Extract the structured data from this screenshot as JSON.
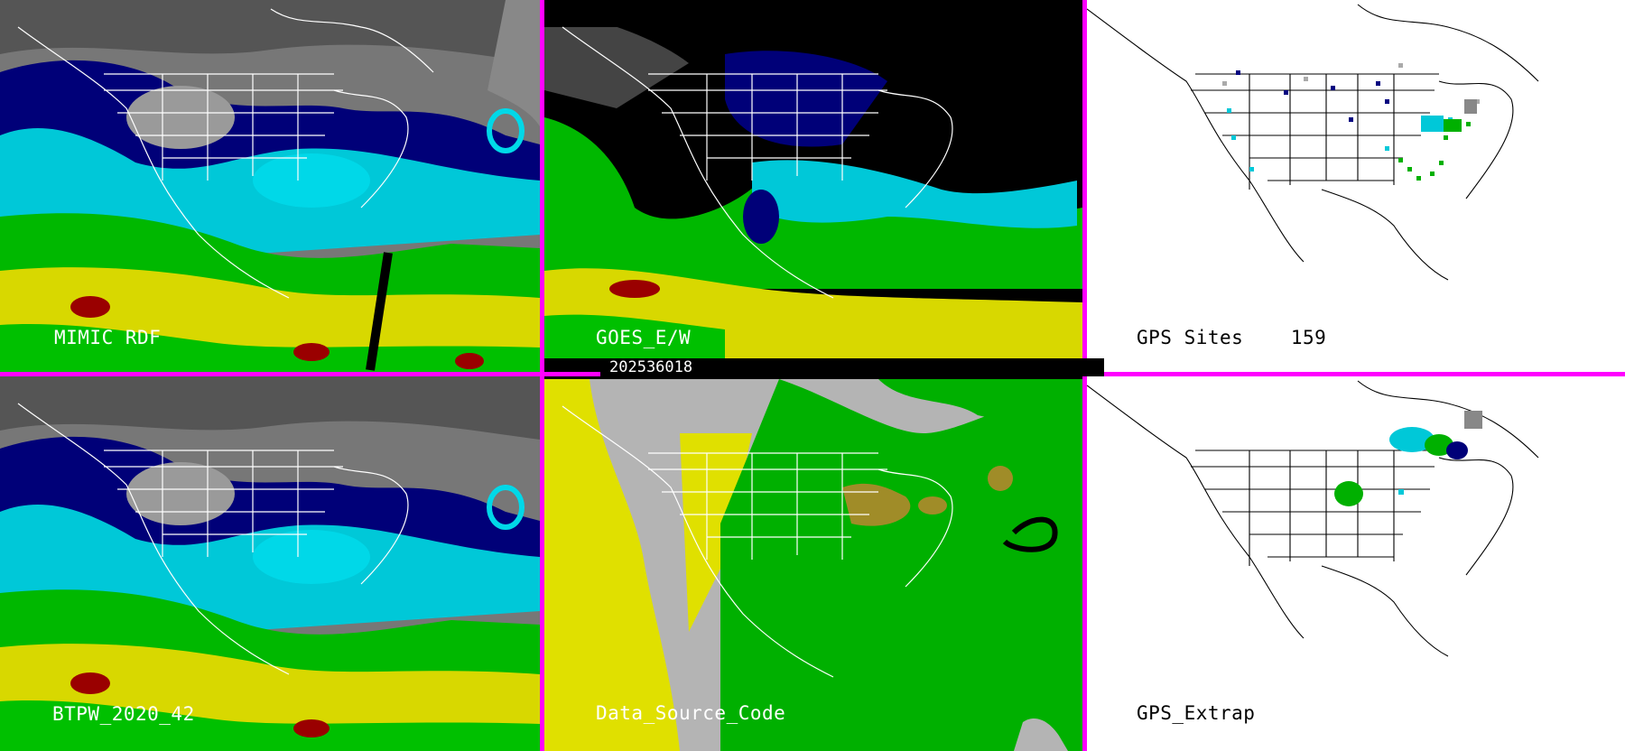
{
  "panels": [
    {
      "id": "mimic",
      "label": "MIMIC RDF",
      "label_color": "#ffffff",
      "style": "color"
    },
    {
      "id": "goes",
      "label": "GOES_E/W",
      "label_color": "#ffffff",
      "style": "goes"
    },
    {
      "id": "gps",
      "label": "GPS Sites    159",
      "label_color": "#000000",
      "style": "gps"
    },
    {
      "id": "btpw",
      "label": "BTPW_2020_42",
      "label_color": "#ffffff",
      "style": "color"
    },
    {
      "id": "dsc",
      "label": "Data_Source_Code",
      "label_color": "#ffffff",
      "style": "dsc"
    },
    {
      "id": "extrap",
      "label": "GPS_Extrap",
      "label_color": "#000000",
      "style": "extrap"
    }
  ],
  "timestamp": "202536018",
  "colors": {
    "divider": "#ff00ff",
    "tpw_low": "#000080",
    "tpw_mid_low": "#00c8d8",
    "tpw_mid": "#00c000",
    "tpw_high": "#e0e000",
    "tpw_max": "#a00000",
    "source_yellow": "#e0e000",
    "source_green": "#00b000",
    "source_gray": "#b4b4b4",
    "source_olive": "#a08c28"
  }
}
